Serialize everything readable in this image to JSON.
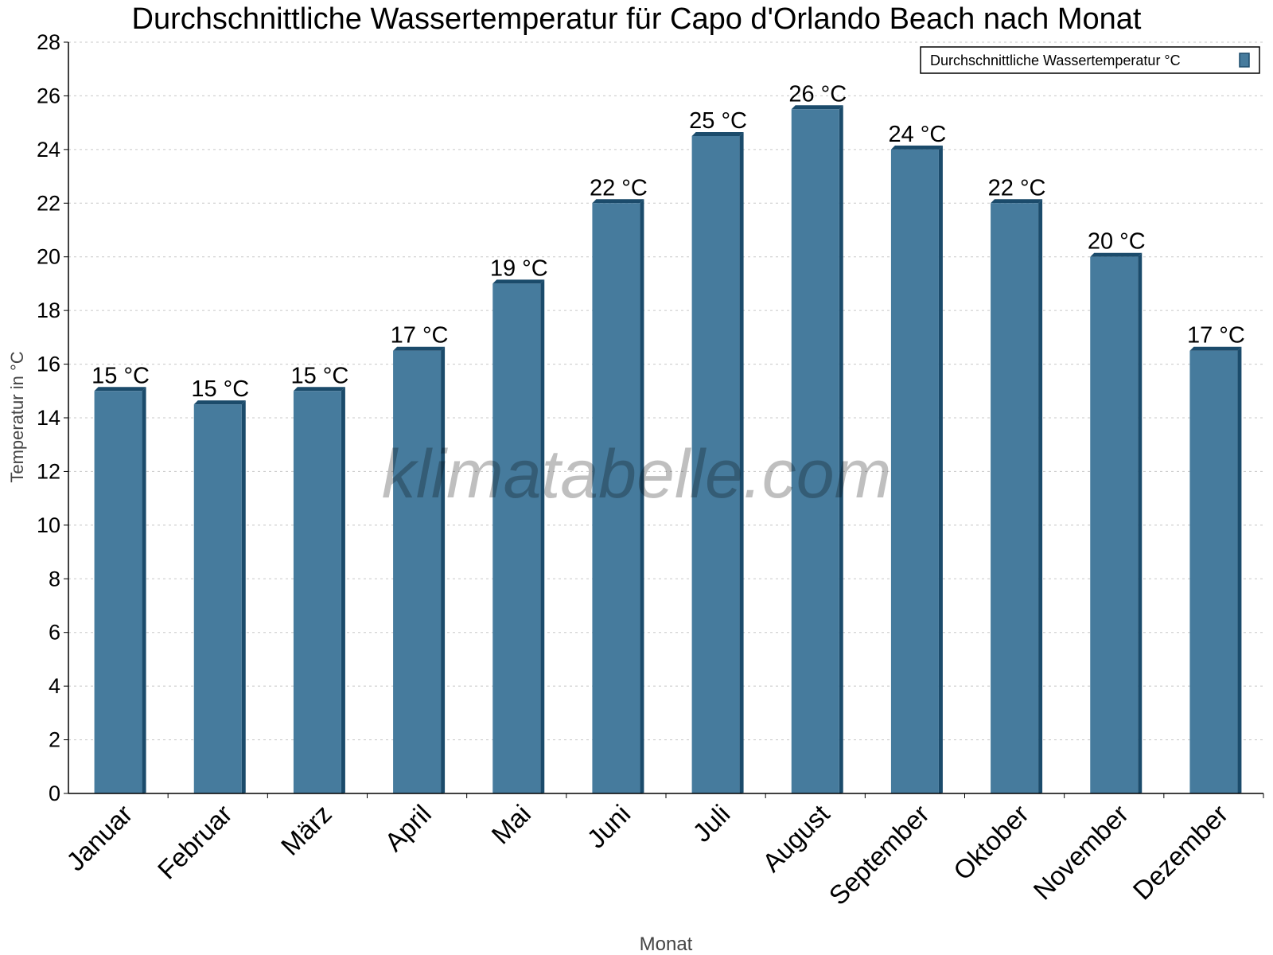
{
  "chart_data": {
    "type": "bar",
    "title": "Durchschnittliche Wassertemperatur für Capo d'Orlando Beach nach Monat",
    "xlabel": "Monat",
    "ylabel": "Temperatur in °C",
    "ylim": [
      0,
      28
    ],
    "yticks": [
      "0",
      "2",
      "4",
      "6",
      "8",
      "10",
      "12",
      "14",
      "16",
      "18",
      "20",
      "22",
      "24",
      "26",
      "28"
    ],
    "grid": true,
    "legend_position": "top-right",
    "categories": [
      "Januar",
      "Februar",
      "März",
      "April",
      "Mai",
      "Juni",
      "Juli",
      "August",
      "September",
      "Oktober",
      "November",
      "Dezember"
    ],
    "series": [
      {
        "name": "Durchschnittliche Wassertemperatur °C",
        "color": "#467b9d",
        "values": [
          15,
          14.5,
          15,
          16.5,
          19,
          22,
          24.5,
          25.5,
          24,
          22,
          20,
          16.5
        ],
        "data_labels": [
          "15 °C",
          "15 °C",
          "15 °C",
          "17 °C",
          "19 °C",
          "22 °C",
          "25 °C",
          "26 °C",
          "24 °C",
          "22 °C",
          "20 °C",
          "17 °C"
        ]
      }
    ],
    "watermark": "klimatabelle.com"
  }
}
